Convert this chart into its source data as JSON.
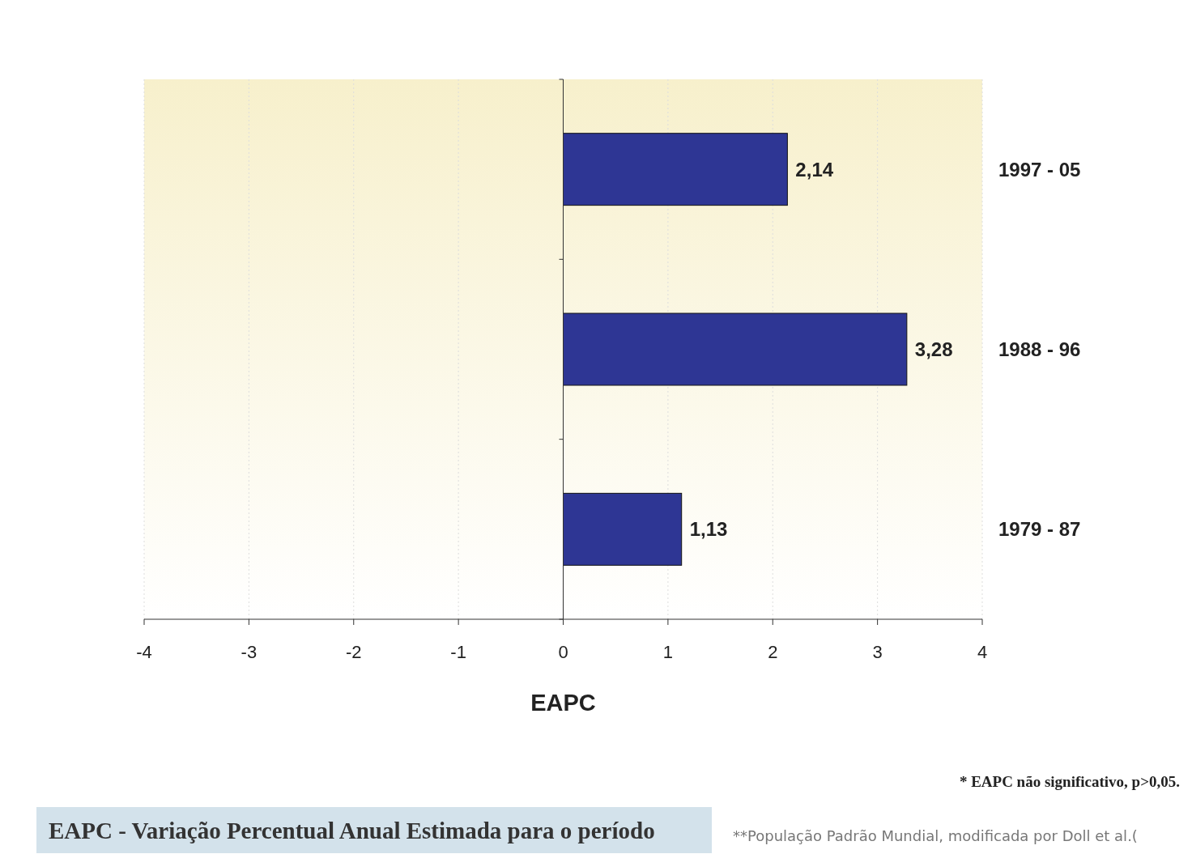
{
  "chart_data": {
    "type": "bar",
    "orientation": "horizontal",
    "xlabel": "EAPC",
    "categories": [
      "1997 - 05",
      "1988 - 96",
      "1979 - 87"
    ],
    "values": [
      2.14,
      3.28,
      1.13
    ],
    "color": "#2e3694",
    "value_labels": [
      "2,14",
      "3,28",
      "1,13"
    ],
    "xlim": [
      -4,
      4
    ],
    "xticks": [
      -4,
      -3,
      -2,
      -1,
      0,
      1,
      2,
      3,
      4
    ],
    "grid": "x",
    "annotations": [
      "* EAPC não significativo, p>0,05.",
      "EAPC - Variação Percentual Anual Estimada para o período",
      "**População Padrão Mundial, modificada por Doll et al.("
    ]
  }
}
